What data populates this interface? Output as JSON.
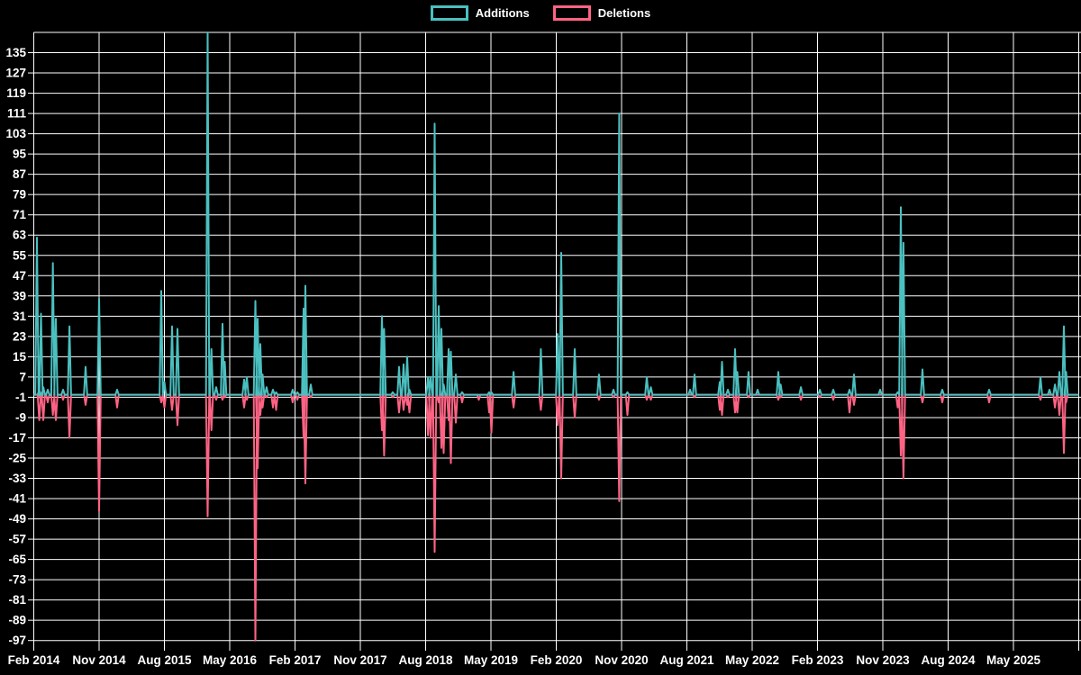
{
  "legend": {
    "position": "top",
    "items": [
      {
        "label": "Additions",
        "color": "#4bc0c0"
      },
      {
        "label": "Deletions",
        "color": "#ff6384"
      }
    ]
  },
  "colors": {
    "background": "#000000",
    "grid": "#ffffff",
    "text": "#ffffff",
    "additions": "#4bc0c0",
    "deletions": "#ff6384"
  },
  "chart_data": {
    "type": "line",
    "title": "",
    "xlabel": "",
    "ylabel": "",
    "legend_entries": [
      "Additions",
      "Deletions"
    ],
    "grid": true,
    "x_axis": {
      "tick_labels": [
        "Feb 2014",
        "Nov 2014",
        "Aug 2015",
        "May 2016",
        "Feb 2017",
        "Nov 2017",
        "Aug 2018",
        "May 2019",
        "Feb 2020",
        "Nov 2020",
        "Aug 2021",
        "May 2022",
        "Feb 2023",
        "Nov 2023",
        "Aug 2024",
        "May 2025"
      ],
      "tick_interval_months": 9
    },
    "y_axis": {
      "min": -97,
      "max": 143,
      "tick_step": 8,
      "tick_labels": [
        "135",
        "127",
        "119",
        "111",
        "103",
        "95",
        "87",
        "79",
        "71",
        "63",
        "55",
        "47",
        "39",
        "31",
        "23",
        "15",
        "7",
        "-1",
        "-9",
        "-17",
        "-25",
        "-33",
        "-41",
        "-49",
        "-57",
        "-65",
        "-73",
        "-81",
        "-89",
        "-97"
      ]
    },
    "series_meta": [
      {
        "name": "Additions",
        "color": "#4bc0c0",
        "baseline": 0
      },
      {
        "name": "Deletions",
        "color": "#ff6384",
        "baseline": 0
      }
    ],
    "points_format": "x_fraction_of_plot_width, additions_value, deletions_value",
    "points": [
      [
        0.003,
        62,
        0
      ],
      [
        0.0053,
        2,
        -10
      ],
      [
        0.0069,
        32,
        -3
      ],
      [
        0.0091,
        3,
        -10
      ],
      [
        0.0134,
        2,
        -3
      ],
      [
        0.0183,
        52,
        -8
      ],
      [
        0.0211,
        30,
        -10
      ],
      [
        0.028,
        2,
        -2
      ],
      [
        0.0341,
        27,
        -17
      ],
      [
        0.0496,
        11,
        -4
      ],
      [
        0.0625,
        38,
        -46
      ],
      [
        0.0797,
        2,
        -5
      ],
      [
        0.122,
        41,
        -3
      ],
      [
        0.125,
        5,
        -5
      ],
      [
        0.1323,
        27,
        -6
      ],
      [
        0.1375,
        26,
        -12
      ],
      [
        0.1664,
        143,
        -48
      ],
      [
        0.17,
        18,
        -14
      ],
      [
        0.1746,
        3,
        -2
      ],
      [
        0.1806,
        28,
        -2
      ],
      [
        0.1828,
        13,
        -1
      ],
      [
        0.2013,
        6,
        -5
      ],
      [
        0.2039,
        7,
        -2
      ],
      [
        0.2121,
        37,
        -97
      ],
      [
        0.2142,
        30,
        -29
      ],
      [
        0.2168,
        20,
        -8
      ],
      [
        0.219,
        8,
        -5
      ],
      [
        0.2228,
        3,
        -1
      ],
      [
        0.2289,
        2,
        -5
      ],
      [
        0.2319,
        1,
        -6
      ],
      [
        0.2478,
        2,
        -3
      ],
      [
        0.2522,
        1,
        -2
      ],
      [
        0.2582,
        34,
        -17
      ],
      [
        0.2599,
        43,
        -35
      ],
      [
        0.2651,
        4,
        -1
      ],
      [
        0.3332,
        31,
        -14
      ],
      [
        0.3353,
        26,
        -24
      ],
      [
        0.3435,
        1,
        -1
      ],
      [
        0.3496,
        11,
        -7
      ],
      [
        0.3539,
        12,
        -6
      ],
      [
        0.3573,
        15,
        -4
      ],
      [
        0.3595,
        2,
        -7
      ],
      [
        0.3772,
        7,
        -16
      ],
      [
        0.3797,
        7,
        -17
      ],
      [
        0.3836,
        107,
        -62
      ],
      [
        0.3875,
        35,
        -3
      ],
      [
        0.3901,
        26,
        -21
      ],
      [
        0.3922,
        4,
        -23
      ],
      [
        0.397,
        18,
        -10
      ],
      [
        0.3991,
        17,
        -27
      ],
      [
        0.4039,
        8,
        -11
      ],
      [
        0.4099,
        1,
        -3
      ],
      [
        0.4259,
        0,
        -2
      ],
      [
        0.4358,
        1,
        -7
      ],
      [
        0.4379,
        1,
        -15
      ],
      [
        0.4591,
        9,
        -5
      ],
      [
        0.4853,
        18,
        -6
      ],
      [
        0.5013,
        24,
        -12
      ],
      [
        0.5047,
        56,
        -33
      ],
      [
        0.5177,
        18,
        -9
      ],
      [
        0.5409,
        8,
        -2
      ],
      [
        0.5547,
        2,
        -1
      ],
      [
        0.5603,
        111,
        -42
      ],
      [
        0.5681,
        1,
        -8
      ],
      [
        0.5866,
        7,
        -2
      ],
      [
        0.5905,
        3,
        -2
      ],
      [
        0.628,
        2,
        0
      ],
      [
        0.6323,
        8,
        -1
      ],
      [
        0.6565,
        5,
        -6
      ],
      [
        0.6586,
        13,
        -8
      ],
      [
        0.6642,
        2,
        -1
      ],
      [
        0.6711,
        18,
        -7
      ],
      [
        0.6733,
        9,
        -7
      ],
      [
        0.684,
        9,
        -1
      ],
      [
        0.6927,
        2,
        0
      ],
      [
        0.7125,
        9,
        -2
      ],
      [
        0.7147,
        4,
        -1
      ],
      [
        0.7341,
        3,
        -2
      ],
      [
        0.7522,
        2,
        -1
      ],
      [
        0.7651,
        2,
        -2
      ],
      [
        0.7806,
        2,
        -7
      ],
      [
        0.7849,
        8,
        -4
      ],
      [
        0.8099,
        2,
        0
      ],
      [
        0.8267,
        1,
        -5
      ],
      [
        0.8297,
        74,
        -24
      ],
      [
        0.8322,
        60,
        -33
      ],
      [
        0.8504,
        10,
        -3
      ],
      [
        0.8694,
        2,
        -3
      ],
      [
        0.9142,
        2,
        -3
      ],
      [
        0.9634,
        7,
        -2
      ],
      [
        0.972,
        2,
        0
      ],
      [
        0.9772,
        4,
        -5
      ],
      [
        0.9815,
        9,
        -8
      ],
      [
        0.9858,
        27,
        -23
      ],
      [
        0.9879,
        9,
        -3
      ]
    ]
  }
}
